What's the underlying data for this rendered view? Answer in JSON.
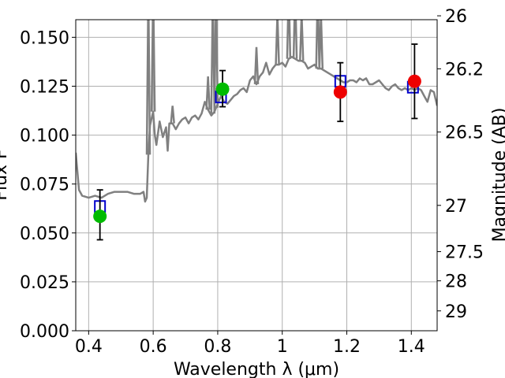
{
  "chart_data": {
    "type": "scatter",
    "title": "",
    "xlabel": "Wavelength  λ (μm)",
    "ylabel": "Flux F",
    "ylabel_right": "Magnitude (AB)",
    "xlim": [
      0.36,
      1.48
    ],
    "ylim": [
      0.0,
      0.159
    ],
    "grid": true,
    "x_ticks": [
      0.4,
      0.6,
      0.8,
      1.0,
      1.2,
      1.4
    ],
    "x_tick_labels": [
      "0.4",
      "0.6",
      "0.8",
      "1",
      "1.2",
      "1.4"
    ],
    "y_ticks": [
      0.0,
      0.025,
      0.05,
      0.075,
      0.1,
      0.125,
      0.15
    ],
    "y_tick_labels": [
      "0.000",
      "0.025",
      "0.050",
      "0.075",
      "0.100",
      "0.125",
      "0.150"
    ],
    "right_axis": {
      "label": "Magnitude (AB)",
      "ticks": [
        {
          "mag": 26,
          "label": "26"
        },
        {
          "mag": 26.2,
          "label": "26.2"
        },
        {
          "mag": 26.5,
          "label": "26.5"
        },
        {
          "mag": 27,
          "label": "27"
        },
        {
          "mag": 27.5,
          "label": "27.5"
        },
        {
          "mag": 28,
          "label": "28"
        },
        {
          "mag": 29,
          "label": "29"
        }
      ]
    },
    "spectrum": {
      "color": "#808080",
      "x": [
        0.36,
        0.37,
        0.38,
        0.4,
        0.42,
        0.44,
        0.46,
        0.48,
        0.5,
        0.52,
        0.54,
        0.56,
        0.57,
        0.575,
        0.58,
        0.585,
        0.59,
        0.6,
        0.605,
        0.61,
        0.62,
        0.63,
        0.64,
        0.645,
        0.65,
        0.66,
        0.67,
        0.68,
        0.69,
        0.7,
        0.71,
        0.72,
        0.73,
        0.74,
        0.75,
        0.76,
        0.77,
        0.78,
        0.79,
        0.8,
        0.81,
        0.82,
        0.83,
        0.84,
        0.85,
        0.86,
        0.87,
        0.88,
        0.89,
        0.9,
        0.91,
        0.92,
        0.93,
        0.94,
        0.95,
        0.96,
        0.97,
        0.98,
        0.99,
        1.0,
        1.01,
        1.02,
        1.03,
        1.04,
        1.05,
        1.06,
        1.07,
        1.08,
        1.09,
        1.1,
        1.11,
        1.12,
        1.13,
        1.14,
        1.15,
        1.16,
        1.17,
        1.18,
        1.19,
        1.2,
        1.21,
        1.22,
        1.23,
        1.24,
        1.25,
        1.26,
        1.27,
        1.28,
        1.29,
        1.3,
        1.31,
        1.32,
        1.33,
        1.34,
        1.35,
        1.36,
        1.37,
        1.38,
        1.39,
        1.4,
        1.41,
        1.42,
        1.43,
        1.44,
        1.45,
        1.46,
        1.47,
        1.48
      ],
      "y": [
        0.091,
        0.072,
        0.069,
        0.068,
        0.069,
        0.068,
        0.07,
        0.071,
        0.071,
        0.071,
        0.07,
        0.07,
        0.071,
        0.066,
        0.068,
        0.09,
        0.105,
        0.112,
        0.1,
        0.095,
        0.107,
        0.099,
        0.104,
        0.092,
        0.106,
        0.106,
        0.103,
        0.106,
        0.108,
        0.109,
        0.106,
        0.109,
        0.11,
        0.108,
        0.111,
        0.117,
        0.113,
        0.11,
        0.112,
        0.116,
        0.12,
        0.117,
        0.116,
        0.118,
        0.12,
        0.121,
        0.123,
        0.124,
        0.122,
        0.128,
        0.13,
        0.126,
        0.13,
        0.132,
        0.137,
        0.131,
        0.134,
        0.136,
        0.136,
        0.137,
        0.135,
        0.139,
        0.14,
        0.139,
        0.138,
        0.138,
        0.137,
        0.134,
        0.135,
        0.136,
        0.134,
        0.134,
        0.133,
        0.132,
        0.131,
        0.13,
        0.129,
        0.128,
        0.127,
        0.127,
        0.128,
        0.128,
        0.127,
        0.129,
        0.128,
        0.129,
        0.126,
        0.126,
        0.127,
        0.128,
        0.126,
        0.124,
        0.123,
        0.125,
        0.126,
        0.124,
        0.123,
        0.124,
        0.123,
        0.124,
        0.123,
        0.124,
        0.123,
        0.12,
        0.117,
        0.123,
        0.122,
        0.115
      ],
      "spikes": [
        {
          "x": 0.585,
          "y": 0.175
        },
        {
          "x": 0.6,
          "y": 0.175
        },
        {
          "x": 0.66,
          "y": 0.115
        },
        {
          "x": 0.77,
          "y": 0.13
        },
        {
          "x": 0.785,
          "y": 0.175
        },
        {
          "x": 0.795,
          "y": 0.175
        },
        {
          "x": 0.92,
          "y": 0.145
        },
        {
          "x": 0.985,
          "y": 0.162
        },
        {
          "x": 1.02,
          "y": 0.175
        },
        {
          "x": 1.04,
          "y": 0.175
        },
        {
          "x": 1.06,
          "y": 0.162
        },
        {
          "x": 1.11,
          "y": 0.175
        },
        {
          "x": 1.12,
          "y": 0.162
        }
      ]
    },
    "model_points": {
      "marker": "open-square",
      "color": "#0000cc",
      "x": [
        0.435,
        0.81,
        1.18,
        1.405
      ],
      "y": [
        0.0635,
        0.1195,
        0.1275,
        0.1245
      ]
    },
    "observed_points": [
      {
        "x": 0.435,
        "y": 0.0585,
        "err_low": 0.0465,
        "err_high": 0.072,
        "color": "#00bb00"
      },
      {
        "x": 0.815,
        "y": 0.1235,
        "err_low": 0.1145,
        "err_high": 0.133,
        "color": "#00bb00"
      },
      {
        "x": 1.18,
        "y": 0.122,
        "err_low": 0.107,
        "err_high": 0.137,
        "color": "#ee0000"
      },
      {
        "x": 1.41,
        "y": 0.1275,
        "err_low": 0.1085,
        "err_high": 0.1465,
        "color": "#ee0000"
      }
    ]
  }
}
